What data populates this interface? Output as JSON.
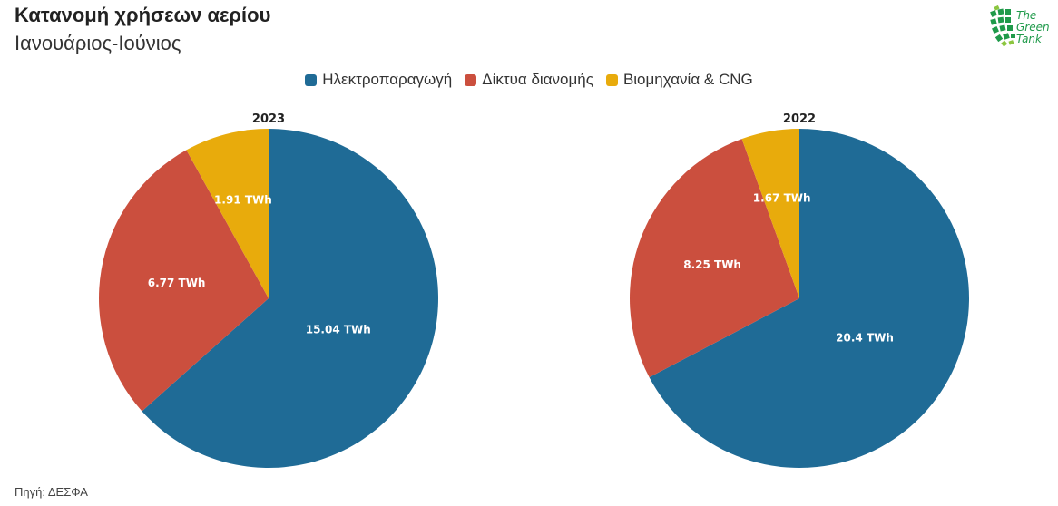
{
  "header": {
    "title": "Κατανομή χρήσεων αερίου",
    "subtitle": "Ιανουάριος-Ιούνιος"
  },
  "logo": {
    "line1": "The",
    "line2": "Green",
    "line3": "Tank",
    "color": "#1f9a4a"
  },
  "legend": [
    {
      "label": "Ηλεκτροπαραγωγή",
      "color": "#1f6b96"
    },
    {
      "label": "Δίκτυα διανομής",
      "color": "#cb4f3e"
    },
    {
      "label": "Βιομηχανία & CNG",
      "color": "#e8ab0c"
    }
  ],
  "source": "Πηγή: ΔΕΣΦΑ",
  "chart_data": [
    {
      "type": "pie",
      "title": "2023",
      "categories": [
        "Ηλεκτροπαραγωγή",
        "Δίκτυα διανομής",
        "Βιομηχανία & CNG"
      ],
      "values": [
        15.04,
        6.77,
        1.91
      ],
      "labels": [
        "15.04 TWh",
        "6.77 TWh",
        "1.91 TWh"
      ],
      "colors": [
        "#1f6b96",
        "#cb4f3e",
        "#e8ab0c"
      ],
      "start": "12 o'clock, clockwise"
    },
    {
      "type": "pie",
      "title": "2022",
      "categories": [
        "Ηλεκτροπαραγωγή",
        "Δίκτυα διανομής",
        "Βιομηχανία & CNG"
      ],
      "values": [
        20.4,
        8.25,
        1.67
      ],
      "labels": [
        "20.4 TWh",
        "8.25 TWh",
        "1.67 TWh"
      ],
      "colors": [
        "#1f6b96",
        "#cb4f3e",
        "#e8ab0c"
      ],
      "start": "12 o'clock, clockwise"
    }
  ]
}
